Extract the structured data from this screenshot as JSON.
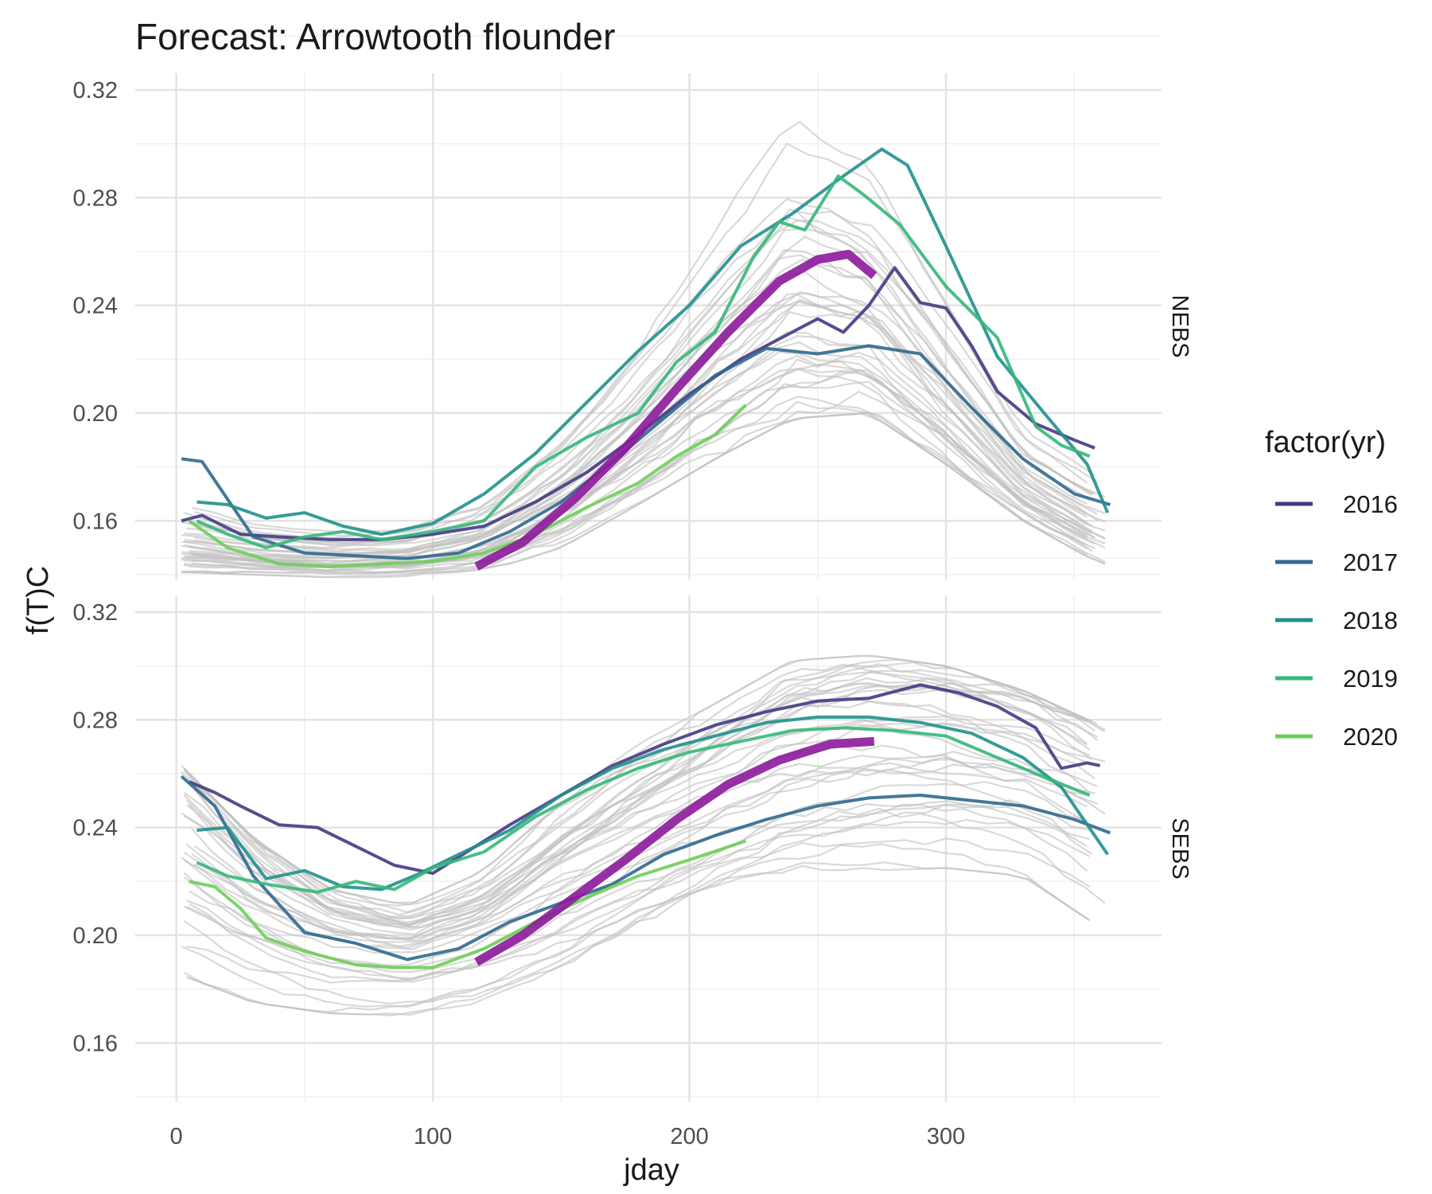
{
  "chart_data": {
    "type": "line",
    "title": "Forecast: Arrowtooth flounder",
    "xlabel": "jday",
    "ylabel": "f(T)C",
    "xlim": [
      -16,
      384
    ],
    "ylim": [
      0.1382,
      0.3262
    ],
    "x_ticks": [
      0,
      100,
      200,
      300
    ],
    "x_tick_labels": [
      "0",
      "100",
      "200",
      "300"
    ],
    "y_ticks": [
      0.16,
      0.2,
      0.24,
      0.28,
      0.32
    ],
    "y_tick_labels": [
      "0.16",
      "0.20",
      "0.24",
      "0.28",
      "0.32"
    ],
    "grid": true,
    "legend": {
      "title": "factor(yr)",
      "position": "right",
      "entries": [
        {
          "label": "2016",
          "color": "#443a83"
        },
        {
          "label": "2017",
          "color": "#31688e"
        },
        {
          "label": "2018",
          "color": "#21908c"
        },
        {
          "label": "2019",
          "color": "#35b779"
        },
        {
          "label": "2020",
          "color": "#6ece58"
        }
      ]
    },
    "background_color": "#bfbfbf",
    "forecast_color": "#8b1a9a",
    "panels": [
      {
        "strip": "NEBS",
        "background_band": {
          "x": [
            0,
            30,
            60,
            90,
            120,
            150,
            180,
            210,
            240,
            270,
            300,
            330,
            360
          ],
          "low": [
            0.141,
            0.14,
            0.139,
            0.139,
            0.141,
            0.15,
            0.166,
            0.183,
            0.198,
            0.2,
            0.181,
            0.16,
            0.144
          ],
          "high": [
            0.168,
            0.16,
            0.157,
            0.159,
            0.17,
            0.196,
            0.232,
            0.277,
            0.318,
            0.298,
            0.247,
            0.196,
            0.178
          ]
        },
        "series": [
          {
            "name": "2016",
            "x": [
              2,
              10,
              25,
              40,
              60,
              80,
              100,
              120,
              140,
              160,
              180,
              200,
              220,
              240,
              250,
              260,
              270,
              280,
              290,
              300,
              310,
              320,
              335,
              350,
              358
            ],
            "y": [
              0.16,
              0.162,
              0.155,
              0.154,
              0.153,
              0.153,
              0.155,
              0.158,
              0.167,
              0.178,
              0.192,
              0.207,
              0.22,
              0.23,
              0.235,
              0.23,
              0.24,
              0.254,
              0.241,
              0.239,
              0.225,
              0.208,
              0.196,
              0.19,
              0.187
            ]
          },
          {
            "name": "2017",
            "x": [
              2,
              10,
              20,
              30,
              50,
              70,
              90,
              110,
              130,
              150,
              170,
              190,
              210,
              230,
              250,
              270,
              290,
              310,
              330,
              350,
              364
            ],
            "y": [
              0.183,
              0.182,
              0.168,
              0.154,
              0.148,
              0.147,
              0.146,
              0.148,
              0.156,
              0.167,
              0.182,
              0.198,
              0.214,
              0.224,
              0.222,
              0.225,
              0.222,
              0.202,
              0.183,
              0.17,
              0.166
            ]
          },
          {
            "name": "2018",
            "x": [
              8,
              20,
              35,
              50,
              65,
              80,
              100,
              120,
              140,
              160,
              180,
              200,
              220,
              240,
              260,
              275,
              285,
              300,
              320,
              340,
              355,
              363
            ],
            "y": [
              0.167,
              0.166,
              0.161,
              0.163,
              0.158,
              0.155,
              0.159,
              0.17,
              0.185,
              0.204,
              0.223,
              0.24,
              0.262,
              0.274,
              0.288,
              0.298,
              0.292,
              0.262,
              0.221,
              0.198,
              0.181,
              0.163
            ]
          },
          {
            "name": "2019",
            "x": [
              8,
              20,
              35,
              50,
              65,
              80,
              100,
              120,
              140,
              160,
              180,
              195,
              210,
              225,
              235,
              245,
              258,
              268,
              282,
              300,
              320,
              335,
              345,
              356
            ],
            "y": [
              0.16,
              0.155,
              0.15,
              0.154,
              0.156,
              0.153,
              0.156,
              0.16,
              0.18,
              0.191,
              0.2,
              0.219,
              0.23,
              0.258,
              0.271,
              0.268,
              0.288,
              0.281,
              0.27,
              0.247,
              0.228,
              0.195,
              0.188,
              0.184
            ]
          },
          {
            "name": "2020",
            "x": [
              5,
              20,
              40,
              60,
              80,
              100,
              120,
              140,
              160,
              180,
              195,
              210,
              222
            ],
            "y": [
              0.16,
              0.15,
              0.144,
              0.143,
              0.144,
              0.145,
              0.148,
              0.155,
              0.165,
              0.174,
              0.184,
              0.192,
              0.203
            ]
          }
        ],
        "forecast": {
          "x": [
            117,
            135,
            155,
            175,
            195,
            215,
            235,
            250,
            262,
            272
          ],
          "y": [
            0.143,
            0.152,
            0.168,
            0.187,
            0.209,
            0.23,
            0.249,
            0.257,
            0.259,
            0.251
          ]
        }
      },
      {
        "strip": "SEBS",
        "background_band": {
          "x": [
            0,
            30,
            60,
            90,
            120,
            150,
            180,
            210,
            240,
            270,
            300,
            330,
            360
          ],
          "low": [
            0.186,
            0.175,
            0.171,
            0.17,
            0.174,
            0.182,
            0.195,
            0.209,
            0.218,
            0.224,
            0.225,
            0.222,
            0.203
          ],
          "high": [
            0.265,
            0.236,
            0.217,
            0.211,
            0.224,
            0.25,
            0.271,
            0.286,
            0.302,
            0.304,
            0.3,
            0.291,
            0.278
          ]
        },
        "series": [
          {
            "name": "2016",
            "x": [
              5,
              15,
              25,
              40,
              55,
              70,
              85,
              100,
              115,
              130,
              150,
              170,
              190,
              210,
              230,
              250,
              270,
              290,
              305,
              320,
              335,
              345,
              355,
              360
            ],
            "y": [
              0.257,
              0.253,
              0.248,
              0.241,
              0.24,
              0.233,
              0.226,
              0.223,
              0.232,
              0.241,
              0.252,
              0.263,
              0.271,
              0.278,
              0.283,
              0.287,
              0.288,
              0.293,
              0.29,
              0.285,
              0.277,
              0.262,
              0.264,
              0.263
            ]
          },
          {
            "name": "2017",
            "x": [
              2,
              15,
              30,
              50,
              70,
              90,
              110,
              130,
              150,
              170,
              190,
              210,
              230,
              250,
              270,
              290,
              310,
              330,
              350,
              364
            ],
            "y": [
              0.259,
              0.248,
              0.222,
              0.201,
              0.197,
              0.191,
              0.195,
              0.205,
              0.212,
              0.219,
              0.23,
              0.237,
              0.243,
              0.248,
              0.251,
              0.252,
              0.25,
              0.248,
              0.243,
              0.238
            ]
          },
          {
            "name": "2018",
            "x": [
              8,
              20,
              35,
              50,
              65,
              80,
              95,
              110,
              130,
              150,
              170,
              190,
              210,
              230,
              250,
              270,
              290,
              310,
              330,
              345,
              363
            ],
            "y": [
              0.239,
              0.24,
              0.221,
              0.224,
              0.218,
              0.217,
              0.223,
              0.23,
              0.239,
              0.252,
              0.262,
              0.269,
              0.274,
              0.279,
              0.281,
              0.281,
              0.279,
              0.275,
              0.266,
              0.255,
              0.23
            ]
          },
          {
            "name": "2019",
            "x": [
              8,
              20,
              35,
              55,
              70,
              85,
              100,
              120,
              140,
              160,
              180,
              200,
              220,
              240,
              260,
              280,
              300,
              320,
              340,
              356
            ],
            "y": [
              0.227,
              0.222,
              0.219,
              0.216,
              0.22,
              0.217,
              0.225,
              0.231,
              0.244,
              0.254,
              0.262,
              0.268,
              0.272,
              0.276,
              0.277,
              0.276,
              0.274,
              0.266,
              0.258,
              0.252
            ]
          },
          {
            "name": "2020",
            "x": [
              5,
              15,
              25,
              35,
              50,
              70,
              85,
              100,
              120,
              140,
              160,
              180,
              200,
              222
            ],
            "y": [
              0.22,
              0.218,
              0.21,
              0.199,
              0.194,
              0.189,
              0.188,
              0.188,
              0.195,
              0.205,
              0.214,
              0.222,
              0.228,
              0.235
            ]
          }
        ],
        "forecast": {
          "x": [
            117,
            135,
            155,
            175,
            195,
            215,
            235,
            255,
            272
          ],
          "y": [
            0.19,
            0.2,
            0.214,
            0.228,
            0.243,
            0.256,
            0.265,
            0.271,
            0.272
          ]
        }
      }
    ]
  }
}
